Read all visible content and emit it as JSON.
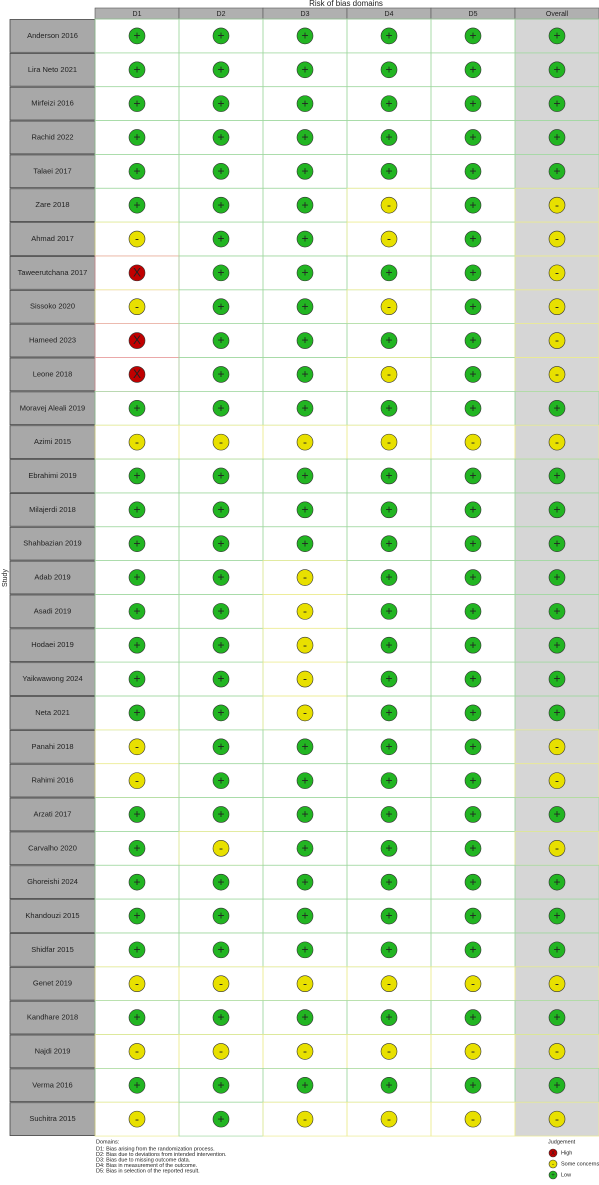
{
  "header": {
    "title": "Risk of bias domains",
    "y_label": "Study"
  },
  "columns": [
    "D1",
    "D2",
    "D3",
    "D4",
    "D5",
    "Overall"
  ],
  "rows": [
    {
      "study": "Anderson 2016",
      "judgments": [
        "+",
        "+",
        "+",
        "+",
        "+",
        "+"
      ]
    },
    {
      "study": "Lira Neto 2021",
      "judgments": [
        "+",
        "+",
        "+",
        "+",
        "+",
        "+"
      ]
    },
    {
      "study": "Mirfeizi 2016",
      "judgments": [
        "+",
        "+",
        "+",
        "+",
        "+",
        "+"
      ]
    },
    {
      "study": "Rachid 2022",
      "judgments": [
        "+",
        "+",
        "+",
        "+",
        "+",
        "+"
      ]
    },
    {
      "study": "Talaei 2017",
      "judgments": [
        "+",
        "+",
        "+",
        "+",
        "+",
        "+"
      ]
    },
    {
      "study": "Zare 2018",
      "judgments": [
        "+",
        "+",
        "+",
        "-",
        "+",
        "-"
      ]
    },
    {
      "study": "Ahmad 2017",
      "judgments": [
        "-",
        "+",
        "+",
        "-",
        "+",
        "-"
      ]
    },
    {
      "study": "Taweerutchana 2017",
      "judgments": [
        "X",
        "+",
        "+",
        "+",
        "+",
        "-"
      ]
    },
    {
      "study": "Sissoko 2020",
      "judgments": [
        "-",
        "+",
        "+",
        "-",
        "+",
        "-"
      ]
    },
    {
      "study": "Hameed 2023",
      "judgments": [
        "X",
        "+",
        "+",
        "+",
        "+",
        "-"
      ]
    },
    {
      "study": "Leone 2018",
      "judgments": [
        "X",
        "+",
        "+",
        "-",
        "+",
        "-"
      ]
    },
    {
      "study": "Moravej Aleali 2019",
      "judgments": [
        "+",
        "+",
        "+",
        "+",
        "+",
        "+"
      ]
    },
    {
      "study": "Azimi 2015",
      "judgments": [
        "-",
        "-",
        "-",
        "-",
        "-",
        "-"
      ]
    },
    {
      "study": "Ebrahimi 2019",
      "judgments": [
        "+",
        "+",
        "+",
        "+",
        "+",
        "+"
      ]
    },
    {
      "study": "Milajerdi 2018",
      "judgments": [
        "+",
        "+",
        "+",
        "+",
        "+",
        "+"
      ]
    },
    {
      "study": "Shahbazian 2019",
      "judgments": [
        "+",
        "+",
        "+",
        "+",
        "+",
        "+"
      ]
    },
    {
      "study": "Adab 2019",
      "judgments": [
        "+",
        "+",
        "-",
        "+",
        "+",
        "+"
      ]
    },
    {
      "study": "Asadi 2019",
      "judgments": [
        "+",
        "+",
        "-",
        "+",
        "+",
        "+"
      ]
    },
    {
      "study": "Hodaei 2019",
      "judgments": [
        "+",
        "+",
        "-",
        "+",
        "+",
        "+"
      ]
    },
    {
      "study": "Yaikwawong 2024",
      "judgments": [
        "+",
        "+",
        "-",
        "+",
        "+",
        "+"
      ]
    },
    {
      "study": "Neta 2021",
      "judgments": [
        "+",
        "+",
        "-",
        "+",
        "+",
        "+"
      ]
    },
    {
      "study": "Panahi 2018",
      "judgments": [
        "-",
        "+",
        "+",
        "+",
        "+",
        "-"
      ]
    },
    {
      "study": "Rahimi 2016",
      "judgments": [
        "-",
        "+",
        "+",
        "+",
        "+",
        "-"
      ]
    },
    {
      "study": "Arzati 2017",
      "judgments": [
        "+",
        "+",
        "+",
        "+",
        "+",
        "+"
      ]
    },
    {
      "study": "Carvalho 2020",
      "judgments": [
        "+",
        "-",
        "+",
        "+",
        "+",
        "-"
      ]
    },
    {
      "study": "Ghoreishi 2024",
      "judgments": [
        "+",
        "+",
        "+",
        "+",
        "+",
        "+"
      ]
    },
    {
      "study": "Khandouzi 2015",
      "judgments": [
        "+",
        "+",
        "+",
        "+",
        "+",
        "+"
      ]
    },
    {
      "study": "Shidfar 2015",
      "judgments": [
        "+",
        "+",
        "+",
        "+",
        "+",
        "+"
      ]
    },
    {
      "study": "Genet 2019",
      "judgments": [
        "-",
        "-",
        "-",
        "-",
        "-",
        "-"
      ]
    },
    {
      "study": "Kandhare 2018",
      "judgments": [
        "+",
        "+",
        "+",
        "+",
        "+",
        "+"
      ]
    },
    {
      "study": "Najdi 2019",
      "judgments": [
        "-",
        "-",
        "-",
        "-",
        "-",
        "-"
      ]
    },
    {
      "study": "Verma 2016",
      "judgments": [
        "+",
        "+",
        "+",
        "+",
        "+",
        "+"
      ]
    },
    {
      "study": "Suchitra 2015",
      "judgments": [
        "-",
        "+",
        "-",
        "-",
        "-",
        "-"
      ]
    }
  ],
  "footer": {
    "title": "Domains:",
    "notes": [
      "D1: Bias arising from the randomization process.",
      "D2: Bias due to deviations from intended intervention.",
      "D3: Bias due to missing outcome data.",
      "D4: Bias in measurement of the outcome.",
      "D5: Bias in selection of the reported result."
    ]
  },
  "legend": {
    "title": "Judgement",
    "items": [
      {
        "symbol": "X",
        "label": "High",
        "color": "#c00000",
        "line": "#e8a0a0"
      },
      {
        "symbol": "-",
        "label": "Some concerns",
        "color": "#e8e000",
        "line": "#ecec90"
      },
      {
        "symbol": "+",
        "label": "Low",
        "color": "#22b522",
        "line": "#a0d8a0"
      }
    ]
  }
}
